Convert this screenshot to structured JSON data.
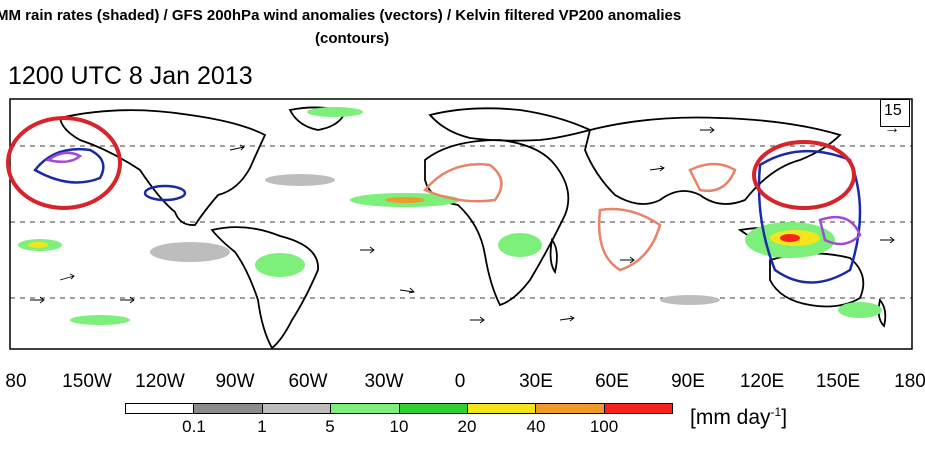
{
  "title": {
    "line1": "MM rain rates (shaded) / GFS 200hPa wind anomalies (vectors) / Kelvin filtered VP200 anomalies",
    "line2": "(contours)"
  },
  "timestamp": "1200 UTC 8 Jan 2013",
  "longitude_labels": [
    "80",
    "150W",
    "120W",
    "90W",
    "60W",
    "30W",
    "0",
    "30E",
    "60E",
    "90E",
    "120E",
    "150E",
    "180"
  ],
  "reference_vector": {
    "label": "15",
    "arrow": "→"
  },
  "colorbar": {
    "labels": [
      "0.1",
      "1",
      "5",
      "10",
      "20",
      "40",
      "100"
    ],
    "colors": [
      "#ffffff",
      "#8c8c8c",
      "#bdbdbd",
      "#7cf07a",
      "#2ed12e",
      "#f2e51a",
      "#f09a2a",
      "#f5231b"
    ],
    "units": "[mm day",
    "units_superscript": "-1",
    "units_close": "]"
  },
  "contour_colors": {
    "positive_vp": "#e8836a",
    "negative_vp": "#1a2aa6",
    "strong_negative_vp": "#a04ad8",
    "highlight_circles": "#d8232a"
  }
}
